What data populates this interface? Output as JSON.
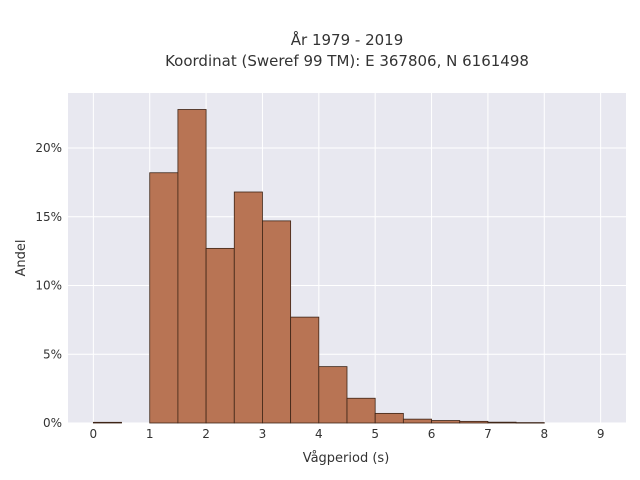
{
  "chart_data": {
    "type": "bar",
    "title": "År 1979 - 2019",
    "subtitle": "Koordinat (Sweref 99 TM): E 367806, N 6161498",
    "xlabel": "Vågperiod (s)",
    "ylabel": "Andel",
    "xlim": [
      -0.45,
      9.45
    ],
    "ylim": [
      0,
      0.24
    ],
    "x_ticks": [
      0,
      1,
      2,
      3,
      4,
      5,
      6,
      7,
      8,
      9
    ],
    "y_ticks": [
      0,
      0.05,
      0.1,
      0.15,
      0.2
    ],
    "y_tick_labels": [
      "0%",
      "5%",
      "10%",
      "15%",
      "20%"
    ],
    "bin_width": 0.5,
    "bins": [
      {
        "x": 0.0,
        "value": 0.0005
      },
      {
        "x": 1.0,
        "value": 0.182
      },
      {
        "x": 1.5,
        "value": 0.228
      },
      {
        "x": 2.0,
        "value": 0.127
      },
      {
        "x": 2.5,
        "value": 0.168
      },
      {
        "x": 3.0,
        "value": 0.147
      },
      {
        "x": 3.5,
        "value": 0.077
      },
      {
        "x": 4.0,
        "value": 0.041
      },
      {
        "x": 4.5,
        "value": 0.018
      },
      {
        "x": 5.0,
        "value": 0.007
      },
      {
        "x": 5.5,
        "value": 0.0028
      },
      {
        "x": 6.0,
        "value": 0.0018
      },
      {
        "x": 6.5,
        "value": 0.0012
      },
      {
        "x": 7.0,
        "value": 0.0006
      },
      {
        "x": 7.5,
        "value": 0.0003
      }
    ],
    "bar_color": "#b87454",
    "bar_edge_color": "#3d2416",
    "plot_background": "#e8e8f0",
    "grid": true
  }
}
